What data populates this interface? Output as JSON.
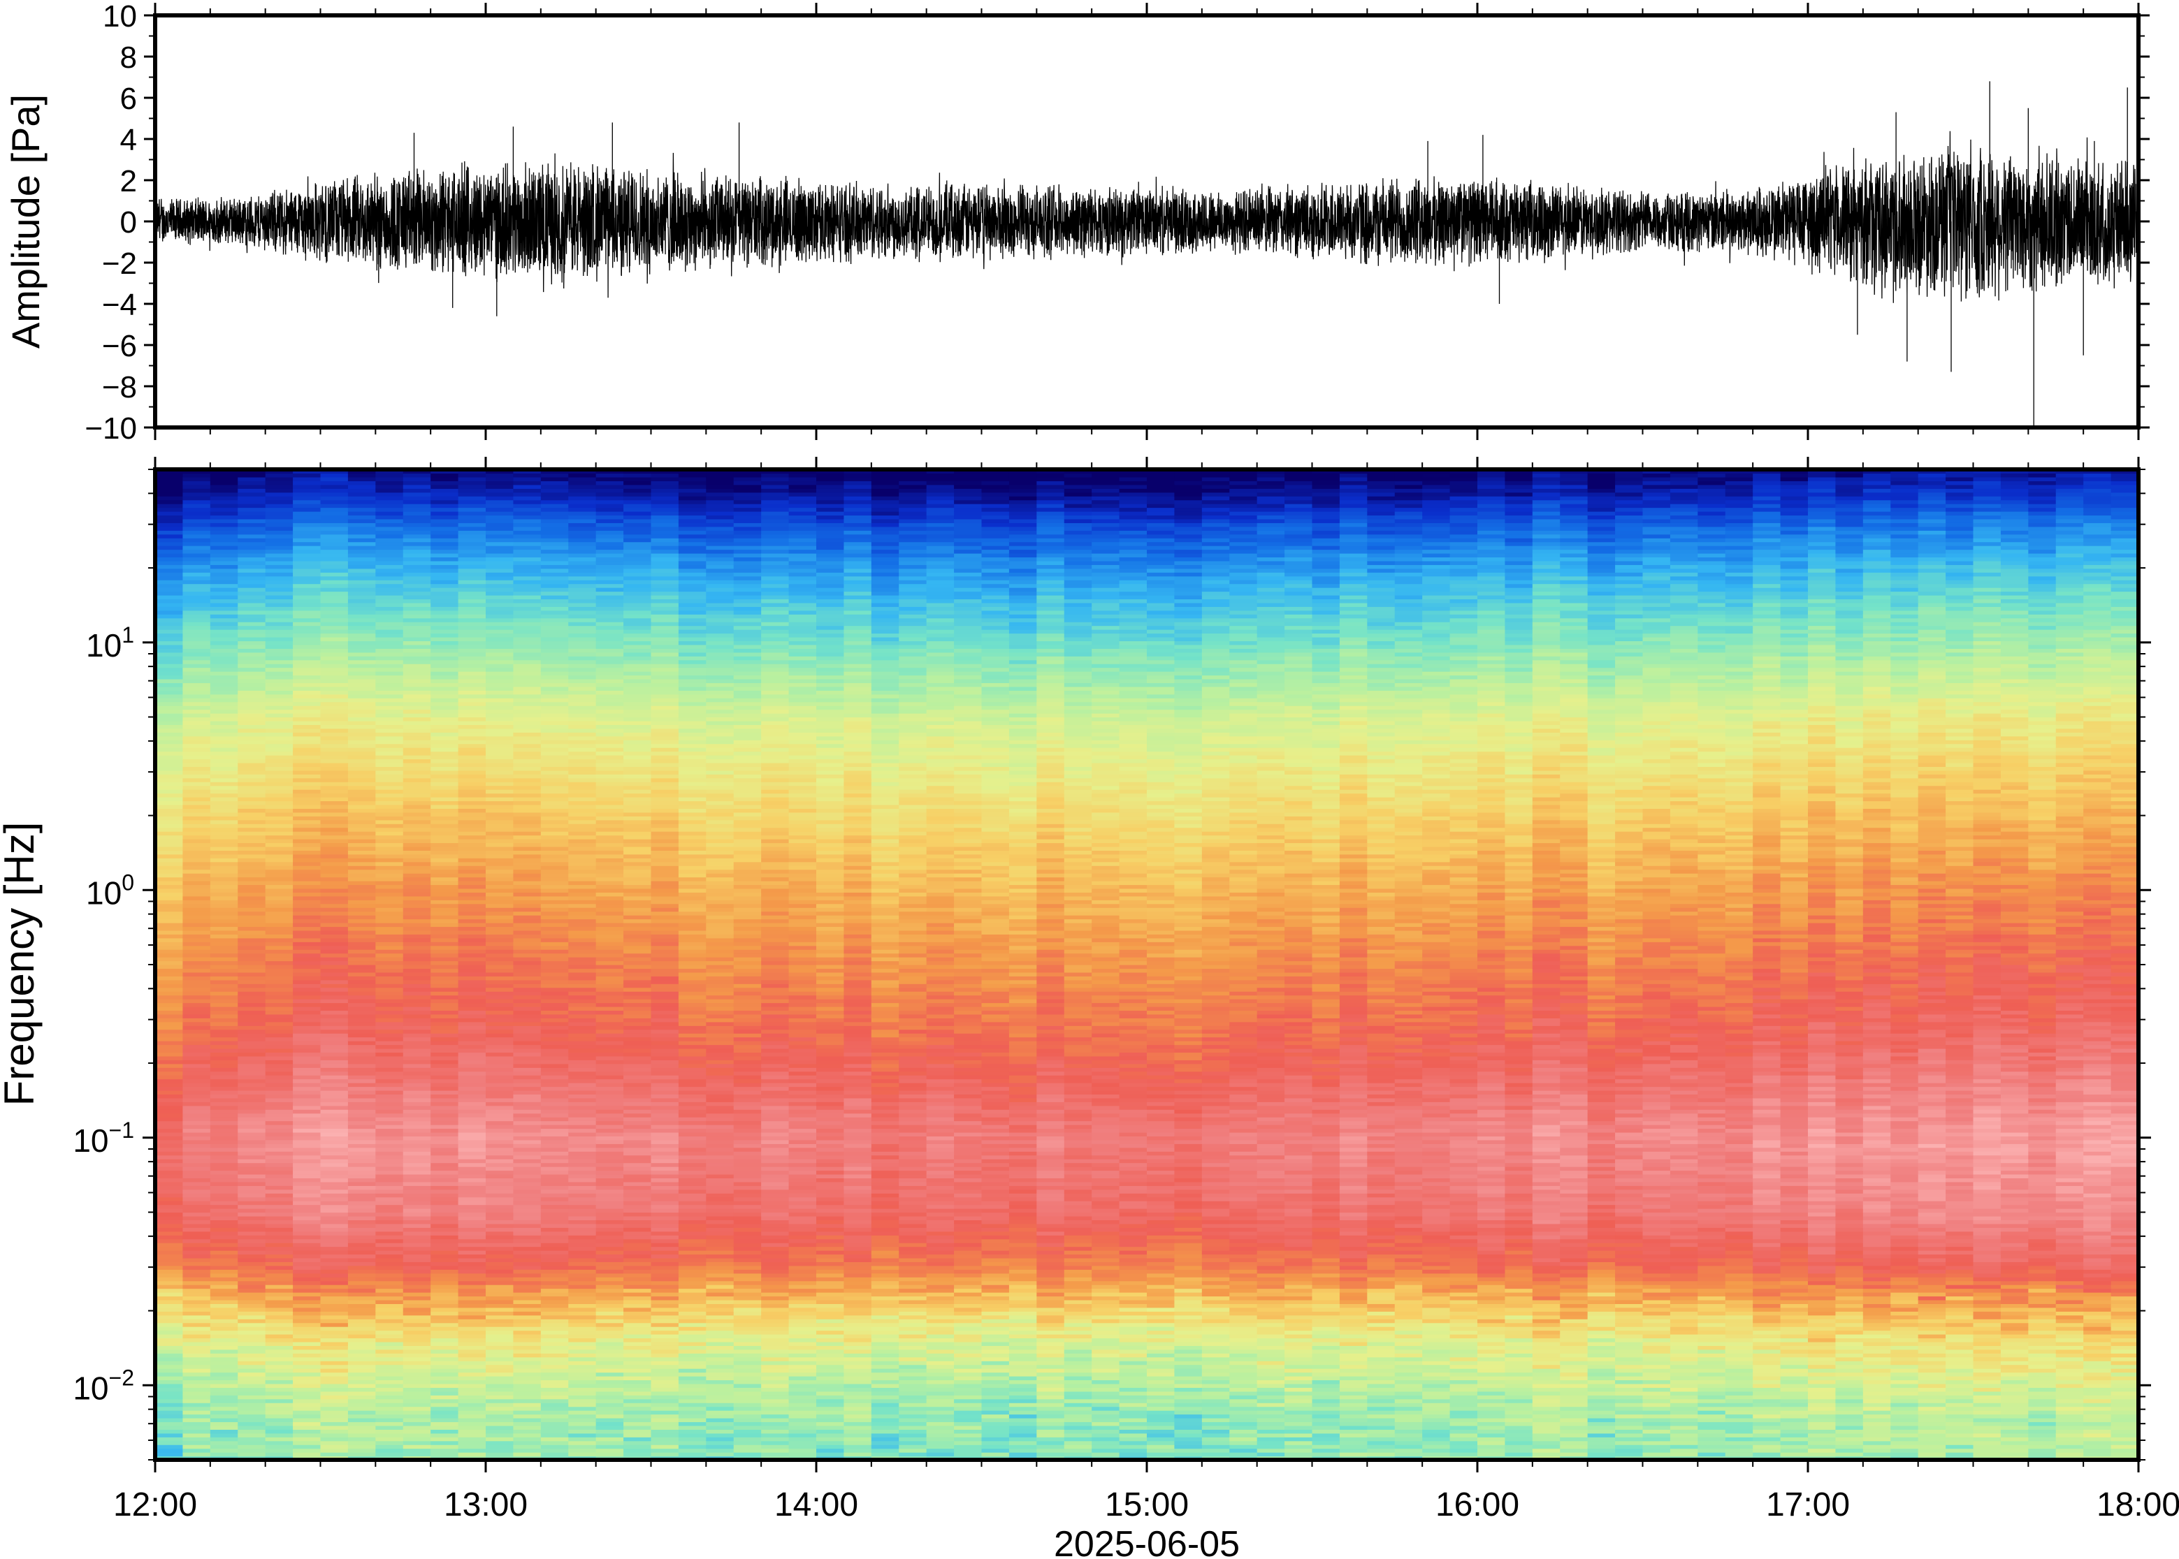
{
  "chart_data": [
    {
      "type": "line",
      "panel": "waveform",
      "ylabel": "Amplitude [Pa]",
      "ylim": [
        -10,
        10
      ],
      "yticks": [
        -10,
        -8,
        -6,
        -4,
        -2,
        0,
        2,
        4,
        6,
        8,
        10
      ],
      "ytick_labels": [
        "−10",
        "−8",
        "−6",
        "−4",
        "−2",
        "0",
        "2",
        "4",
        "6",
        "8",
        "10"
      ],
      "xlim": [
        "2025-06-05 12:00",
        "2025-06-05 18:00"
      ],
      "series": [
        {
          "color": "#000000",
          "envelope_time": [
            "12:00",
            "12:15",
            "12:30",
            "12:45",
            "13:00",
            "13:15",
            "13:30",
            "13:45",
            "14:00",
            "14:15",
            "14:30",
            "14:45",
            "15:00",
            "15:15",
            "15:30",
            "15:45",
            "16:00",
            "16:15",
            "16:30",
            "16:45",
            "17:00",
            "17:15",
            "17:30",
            "17:45",
            "18:00"
          ],
          "envelope_amplitude": [
            1.2,
            1.3,
            2.2,
            2.8,
            3.0,
            3.2,
            2.8,
            2.4,
            2.2,
            2.0,
            2.0,
            1.9,
            1.8,
            1.7,
            2.0,
            2.4,
            2.3,
            2.0,
            1.6,
            1.6,
            2.6,
            3.6,
            4.2,
            3.6,
            3.2
          ],
          "peak_times": [
            "12:47",
            "13:05",
            "13:23",
            "13:46",
            "15:51",
            "16:01",
            "17:16",
            "17:33",
            "17:40",
            "17:52",
            "17:58"
          ],
          "peak_values": [
            4.3,
            4.6,
            4.8,
            4.8,
            3.9,
            4.2,
            5.3,
            6.8,
            5.5,
            3.9,
            6.5
          ],
          "trough_times": [
            "12:54",
            "13:02",
            "16:04",
            "17:09",
            "17:18",
            "17:26",
            "17:41",
            "17:50"
          ],
          "trough_values": [
            -4.2,
            -4.6,
            -4.0,
            -5.5,
            -6.8,
            -7.3,
            -10.0,
            -6.5
          ]
        }
      ]
    },
    {
      "type": "heatmap",
      "panel": "spectrogram",
      "ylabel": "Frequency [Hz]",
      "xlabel": "2025-06-05",
      "yscale": "log",
      "ylim": [
        0.005,
        50
      ],
      "yticks": [
        0.01,
        0.1,
        1,
        10
      ],
      "ytick_labels": [
        "10",
        "10",
        "10",
        "10"
      ],
      "ytick_exponents": [
        "−2",
        "−1",
        "0",
        "1"
      ],
      "xlim": [
        "2025-06-05 12:00",
        "2025-06-05 18:00"
      ],
      "xticks": [
        "12:00",
        "13:00",
        "14:00",
        "15:00",
        "16:00",
        "17:00",
        "18:00"
      ],
      "colormap": [
        "#08006b",
        "#0a2ecb",
        "#1470e6",
        "#35b6f2",
        "#75e3c8",
        "#b9f0a0",
        "#e6f08c",
        "#f7d066",
        "#f49a4a",
        "#ef5f55",
        "#f08080",
        "#fbb0b0"
      ],
      "relative_level_profile": {
        "frequency_hz": [
          50,
          40,
          30,
          20,
          14,
          10,
          7,
          5,
          3,
          2,
          1,
          0.5,
          0.3,
          0.2,
          0.1,
          0.05,
          0.03,
          0.02,
          0.015,
          0.01,
          0.007,
          0.005
        ],
        "level": [
          0.0,
          0.05,
          0.15,
          0.25,
          0.32,
          0.38,
          0.45,
          0.52,
          0.58,
          0.63,
          0.7,
          0.76,
          0.8,
          0.84,
          0.92,
          0.88,
          0.79,
          0.64,
          0.55,
          0.47,
          0.42,
          0.4
        ]
      },
      "time_level_offset": [
        -0.04,
        0.0,
        0.03,
        0.04,
        0.03,
        0.02,
        0.01,
        0.0,
        -0.01,
        -0.02,
        -0.02,
        -0.02,
        -0.03,
        -0.03,
        -0.02,
        0.01,
        0.02,
        0.01,
        0.0,
        0.01,
        0.03,
        0.04,
        0.05,
        0.04,
        0.03
      ]
    }
  ]
}
